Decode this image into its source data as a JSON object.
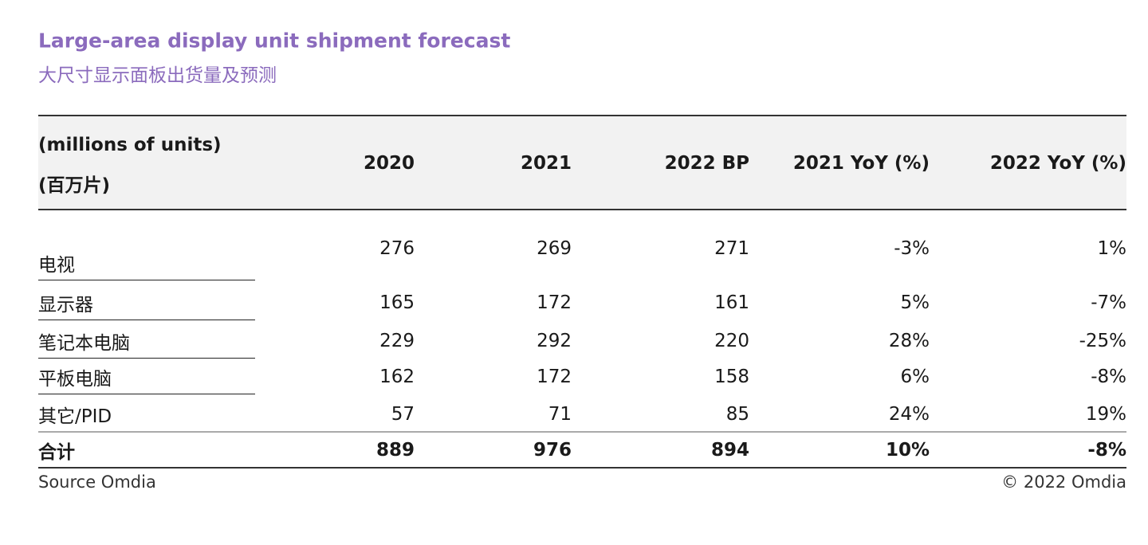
{
  "header": {
    "title": "Large-area display unit shipment forecast",
    "subtitle": "大尺寸显示面板出货量及预测"
  },
  "table": {
    "unit_label": [
      "(millions of units)",
      "(百万片)"
    ],
    "columns": [
      "2020",
      "2021",
      "2022 BP",
      "2021 YoY (%)",
      "2022 YoY (%)"
    ],
    "rows": [
      [
        "电视",
        "276",
        "269",
        "271",
        "-3%",
        "1%"
      ],
      [
        "显示器",
        "165",
        "172",
        "161",
        "5%",
        "-7%"
      ],
      [
        "笔记本电脑",
        "229",
        "292",
        "220",
        "28%",
        "-25%"
      ],
      [
        "平板电脑",
        "162",
        "172",
        "158",
        "6%",
        "-8%"
      ],
      [
        "其它/PID",
        "57",
        "71",
        "85",
        "24%",
        "19%"
      ]
    ],
    "total": [
      "合计",
      "889",
      "976",
      "894",
      "10%",
      "-8%"
    ]
  },
  "footer": {
    "source": "Source Omdia",
    "copyright": "© 2022 Omdia"
  }
}
